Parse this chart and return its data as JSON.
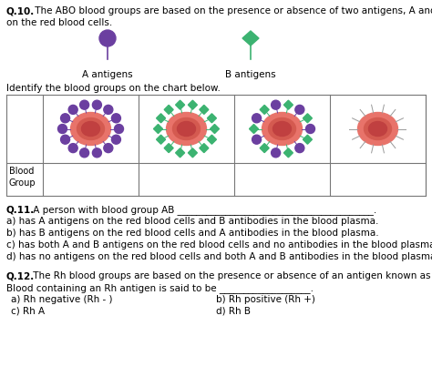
{
  "title_q10_bold": "Q.10.",
  "title_q10_rest": " The ABO blood groups are based on the presence or absence of two antigens, A and B\non the red blood cells.",
  "antigen_a_label": "A antigens",
  "antigen_b_label": "B antigens",
  "identify_text": "Identify the blood groups on the chart below.",
  "blood_group_label": "Blood\nGroup",
  "q11_bold": "Q.11.",
  "q11_rest": " A person with blood group AB _________________________________________.",
  "q11_a": "a) has A antigens on the red blood cells and B antibodies in the blood plasma.",
  "q11_b": "b) has B antigens on the red blood cells and A antibodies in the blood plasma.",
  "q11_c": "c) has both A and B antigens on the red blood cells and no antibodies in the blood plasma.",
  "q11_d": "d) has no antigens on the red blood cells and both A and B antibodies in the blood plasma.",
  "q12_bold": "Q.12.",
  "q12_rest": " The Rh blood groups are based on the presence or absence of an antigen known as Rh.",
  "q12_line2": "Blood containing an Rh antigen is said to be ___________________.",
  "q12_a": "a) Rh negative (Rh - )",
  "q12_b": "b) Rh positive (Rh +)",
  "q12_c": "c) Rh A",
  "q12_d": "d) Rh B",
  "purple_color": "#6B3FA0",
  "green_color": "#3CB371",
  "rbc_outer": "#E8736A",
  "rbc_inner": "#D45A50",
  "rbc_center": "#C04848",
  "bg_color": "#FFFFFF",
  "text_color": "#000000",
  "border_color": "#777777",
  "font_size": 7.5,
  "fig_w": 4.74,
  "fig_h": 4.25,
  "dpi": 100
}
